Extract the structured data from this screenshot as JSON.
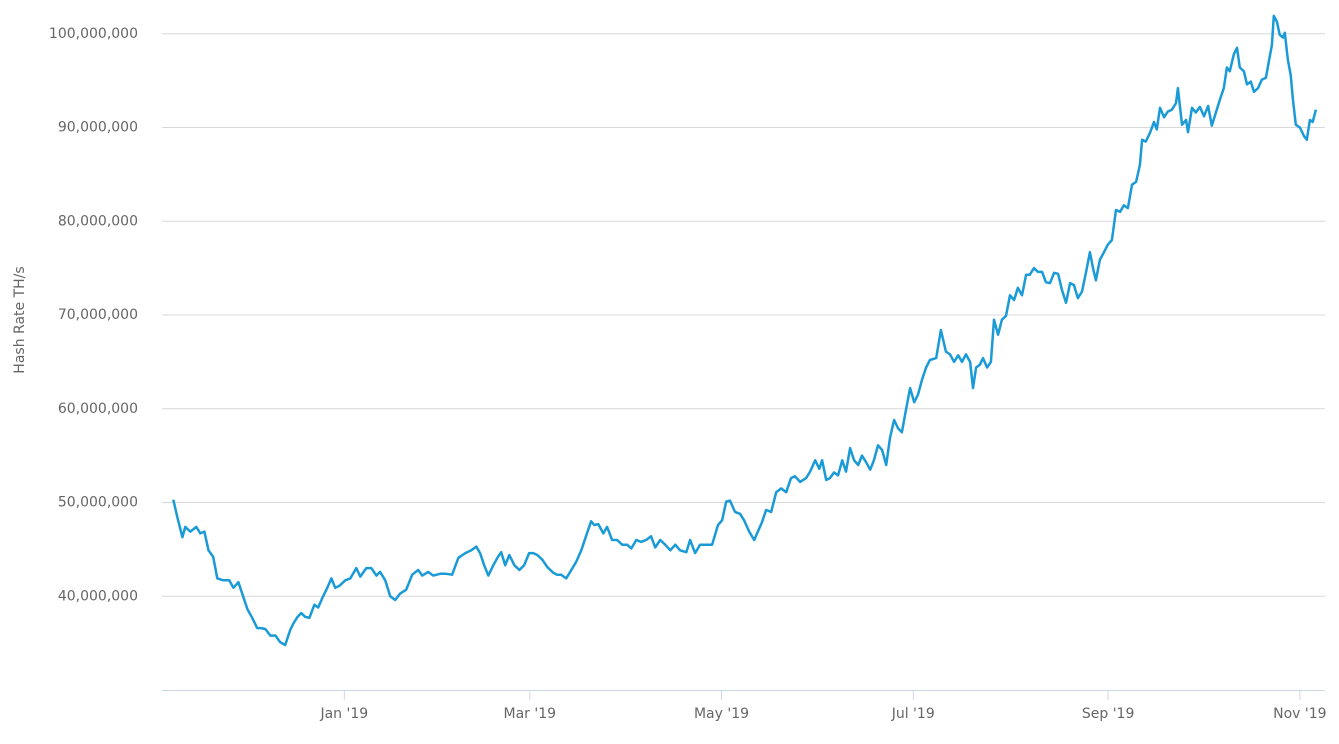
{
  "chart_data": {
    "type": "line",
    "y_label": "Hash Rate TH/s",
    "color": "#1a9ad6",
    "grid": true,
    "xlim": [
      -58,
      312
    ],
    "xticks": [
      {
        "value": 0,
        "label": "Jan '19"
      },
      {
        "value": 59,
        "label": "Mar '19"
      },
      {
        "value": 120,
        "label": "May '19"
      },
      {
        "value": 181,
        "label": "Jul '19"
      },
      {
        "value": 243,
        "label": "Sep '19"
      },
      {
        "value": 304,
        "label": "Nov '19"
      }
    ],
    "ylim": [
      30000000,
      102000000
    ],
    "yticks": [
      {
        "value": 40000000,
        "label": "40,000,000"
      },
      {
        "value": 50000000,
        "label": "50,000,000"
      },
      {
        "value": 60000000,
        "label": "60,000,000"
      },
      {
        "value": 70000000,
        "label": "70,000,000"
      },
      {
        "value": 80000000,
        "label": "80,000,000"
      },
      {
        "value": 90000000,
        "label": "90,000,000"
      },
      {
        "value": 100000000,
        "label": "100,000,000"
      }
    ],
    "x": [
      -54.4,
      -53.1,
      -51.5,
      -50.6,
      -49.0,
      -47.1,
      -45.8,
      -44.5,
      -43.2,
      -41.7,
      -40.4,
      -38.5,
      -36.6,
      -35.3,
      -33.7,
      -32.1,
      -30.8,
      -29.3,
      -27.7,
      -26.4,
      -25.1,
      -23.5,
      -21.9,
      -20.4,
      -18.8,
      -17.2,
      -16.2,
      -14.9,
      -13.7,
      -12.4,
      -11.1,
      -9.5,
      -8.3,
      -7.0,
      -5.7,
      -4.1,
      -2.9,
      -1.6,
      0.3,
      1.9,
      3.8,
      5.1,
      7.0,
      8.6,
      10.2,
      11.4,
      13.0,
      14.6,
      16.2,
      17.8,
      19.7,
      21.6,
      23.5,
      24.8,
      26.7,
      28.3,
      30.5,
      32.4,
      34.3,
      36.3,
      38.5,
      40.4,
      42.0,
      43.2,
      44.5,
      45.8,
      47.4,
      48.7,
      49.9,
      51.2,
      52.5,
      54.1,
      55.7,
      57.2,
      58.8,
      60.1,
      61.4,
      63.0,
      64.6,
      66.5,
      67.7,
      69.0,
      70.6,
      72.2,
      73.8,
      75.4,
      77.0,
      78.5,
      79.5,
      80.8,
      82.4,
      83.6,
      85.2,
      86.8,
      88.4,
      90.0,
      91.3,
      92.9,
      94.4,
      96.0,
      97.6,
      98.9,
      100.5,
      102.1,
      103.7,
      105.3,
      106.8,
      108.8,
      110.0,
      111.6,
      113.2,
      115.1,
      117.0,
      118.9,
      120.2,
      121.5,
      122.7,
      124.3,
      125.9,
      127.2,
      128.8,
      130.4,
      131.7,
      132.9,
      134.2,
      135.8,
      137.4,
      139.0,
      140.6,
      142.1,
      143.4,
      145.0,
      146.9,
      148.2,
      149.8,
      151.1,
      152.0,
      153.3,
      154.5,
      155.8,
      157.1,
      158.4,
      159.6,
      160.9,
      162.2,
      163.5,
      164.7,
      166.0,
      167.3,
      168.5,
      169.8,
      171.1,
      172.4,
      173.6,
      174.9,
      176.2,
      177.4,
      178.7,
      180.0,
      181.3,
      182.5,
      183.8,
      185.1,
      186.3,
      188.3,
      189.8,
      191.4,
      192.7,
      194.0,
      195.3,
      196.5,
      197.8,
      199.1,
      200.0,
      201.0,
      202.2,
      203.2,
      204.5,
      205.7,
      206.7,
      208.0,
      209.2,
      210.5,
      211.8,
      213.1,
      214.3,
      215.6,
      216.9,
      218.1,
      219.4,
      220.7,
      222.0,
      223.2,
      224.5,
      225.8,
      227.1,
      228.3,
      229.6,
      230.9,
      232.1,
      233.4,
      234.7,
      236.0,
      237.2,
      238.2,
      239.1,
      240.4,
      241.7,
      242.9,
      244.2,
      245.5,
      246.8,
      248.0,
      249.3,
      250.6,
      251.9,
      253.1,
      253.8,
      255.0,
      256.3,
      257.6,
      258.5,
      259.5,
      260.8,
      262.0,
      263.3,
      264.6,
      265.2,
      266.5,
      267.8,
      268.4,
      269.7,
      270.9,
      272.2,
      273.5,
      274.8,
      276.0,
      277.3,
      278.6,
      279.8,
      280.8,
      281.7,
      283.0,
      284.0,
      284.9,
      286.2,
      287.2,
      288.4,
      289.4,
      290.7,
      291.9,
      293.2,
      294.2,
      295.1,
      295.7,
      296.7,
      297.6,
      298.6,
      299.2,
      300.2,
      301.1,
      301.8,
      302.7,
      304.0,
      305.3,
      306.2,
      307.2,
      308.1,
      309.1
    ],
    "values": [
      50300000,
      48400000,
      46300000,
      47400000,
      46900000,
      47400000,
      46700000,
      46900000,
      44900000,
      44200000,
      41900000,
      41700000,
      41700000,
      40900000,
      41500000,
      39900000,
      38600000,
      37700000,
      36600000,
      36600000,
      36500000,
      35800000,
      35800000,
      35100000,
      34800000,
      36400000,
      37100000,
      37800000,
      38200000,
      37800000,
      37700000,
      39100000,
      38800000,
      39800000,
      40700000,
      41900000,
      40900000,
      41100000,
      41700000,
      41900000,
      43000000,
      42100000,
      43000000,
      43000000,
      42200000,
      42600000,
      41700000,
      40000000,
      39600000,
      40300000,
      40700000,
      42300000,
      42800000,
      42200000,
      42600000,
      42200000,
      42400000,
      42400000,
      42300000,
      44100000,
      44600000,
      44900000,
      45300000,
      44600000,
      43300000,
      42200000,
      43300000,
      44100000,
      44700000,
      43300000,
      44400000,
      43300000,
      42800000,
      43300000,
      44600000,
      44600000,
      44400000,
      43900000,
      43100000,
      42500000,
      42300000,
      42300000,
      41900000,
      42800000,
      43700000,
      44900000,
      46500000,
      48000000,
      47600000,
      47700000,
      46700000,
      47400000,
      46000000,
      46000000,
      45500000,
      45500000,
      45100000,
      46000000,
      45800000,
      46000000,
      46400000,
      45200000,
      46000000,
      45500000,
      44900000,
      45500000,
      44900000,
      44700000,
      46000000,
      44600000,
      45500000,
      45500000,
      45500000,
      47600000,
      48100000,
      50100000,
      50200000,
      49000000,
      48800000,
      48100000,
      46900000,
      46000000,
      47000000,
      47900000,
      49200000,
      49000000,
      51100000,
      51500000,
      51100000,
      52600000,
      52800000,
      52200000,
      52600000,
      53300000,
      54500000,
      53600000,
      54500000,
      52400000,
      52600000,
      53200000,
      52900000,
      54500000,
      53300000,
      55800000,
      54500000,
      54000000,
      55000000,
      54300000,
      53500000,
      54500000,
      56100000,
      55600000,
      54000000,
      56900000,
      58800000,
      57900000,
      57500000,
      59900000,
      62200000,
      60700000,
      61500000,
      63100000,
      64400000,
      65200000,
      65400000,
      68400000,
      66100000,
      65800000,
      65000000,
      65700000,
      65000000,
      65800000,
      65000000,
      62200000,
      64400000,
      64700000,
      65400000,
      64400000,
      65000000,
      69500000,
      67900000,
      69500000,
      69900000,
      72100000,
      71600000,
      72900000,
      72100000,
      74300000,
      74300000,
      75000000,
      74600000,
      74600000,
      73500000,
      73400000,
      74500000,
      74400000,
      72700000,
      71300000,
      73400000,
      73200000,
      71800000,
      72500000,
      74600000,
      76700000,
      75000000,
      73700000,
      75900000,
      76700000,
      77500000,
      78000000,
      81200000,
      81000000,
      81700000,
      81400000,
      83900000,
      84200000,
      86000000,
      88700000,
      88500000,
      89400000,
      90600000,
      89800000,
      92100000,
      91100000,
      91700000,
      91900000,
      92600000,
      94200000,
      90300000,
      90800000,
      89500000,
      92100000,
      91600000,
      92200000,
      91200000,
      92300000,
      90200000,
      91600000,
      93000000,
      94200000,
      96400000,
      96000000,
      97800000,
      98500000,
      96400000,
      96000000,
      94600000,
      94900000,
      93800000,
      94200000,
      95100000,
      95300000,
      97200000,
      98800000,
      101900000,
      101300000,
      99900000,
      99600000,
      100100000,
      97200000,
      95600000,
      93000000,
      90300000,
      90000000,
      89100000,
      88700000,
      90800000,
      90600000,
      91900000
    ]
  }
}
